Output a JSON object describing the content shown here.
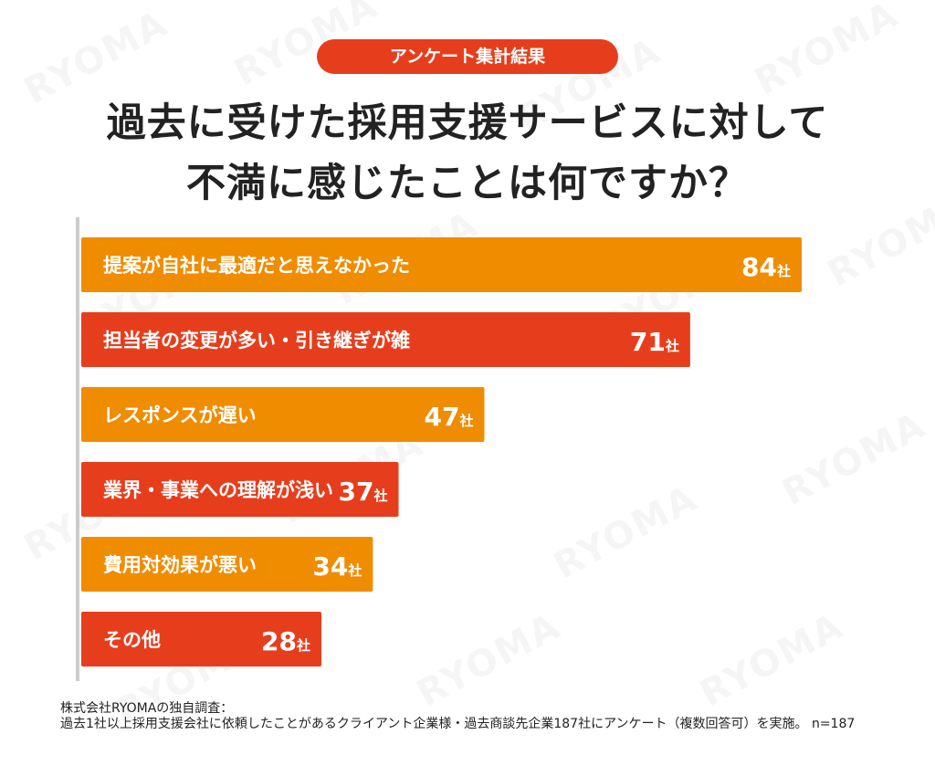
{
  "header": {
    "badge": "アンケート集計結果",
    "title_line1": "過去に受けた採用支援サービスに対して",
    "title_line2": "不満に感じたことは何ですか？"
  },
  "footer": {
    "line1": "株式会社RYOMAの独自調査：",
    "line2": "過去1社以上採用支援会社に依頼したことがあるクライアント企業様・過去商談先企業187社にアンケート（複数回答可）を実施。 n=187"
  },
  "watermark": "RYOMA",
  "colors": {
    "orange": "#f08c00",
    "red": "#e63e1d",
    "axis": "#cccccc"
  },
  "chart_data": {
    "type": "bar",
    "orientation": "horizontal",
    "unit": "社",
    "categories": [
      "提案が自社に最適だと思えなかった",
      "担当者の変更が多い・引き継ぎが雑",
      "レスポンスが遅い",
      "業界・事業への理解が浅い",
      "費用対効果が悪い",
      "その他"
    ],
    "values": [
      84,
      71,
      47,
      37,
      34,
      28
    ],
    "bar_colors": [
      "#f08c00",
      "#e63e1d",
      "#f08c00",
      "#e63e1d",
      "#f08c00",
      "#e63e1d"
    ],
    "xlim": [
      0,
      84
    ],
    "grid": false,
    "legend": "none"
  }
}
